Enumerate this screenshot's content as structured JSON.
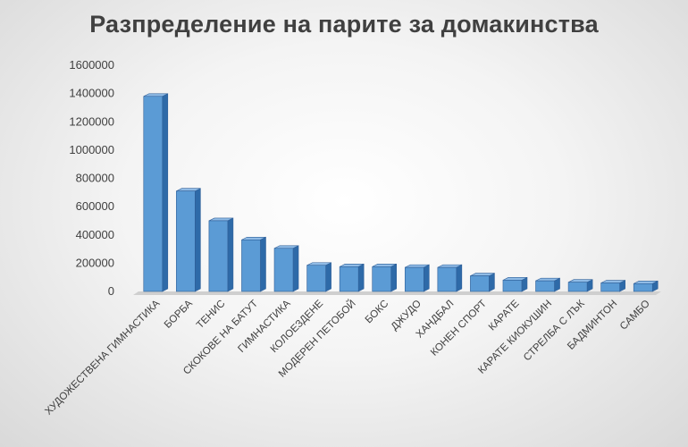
{
  "chart_data": {
    "type": "bar",
    "title": "Разпределение на парите за домакинства",
    "categories": [
      "ХУДОЖЕСТВЕНА ГИМНАСТИКА",
      "БОРБА",
      "ТЕНИС",
      "СКОКОВЕ НА БАТУТ",
      "ГИМНАСТИКА",
      "КОЛОЕЗДЕНЕ",
      "МОДЕРЕН ПЕТОБОЙ",
      "БОКС",
      "ДЖУДО",
      "ХАНДБАЛ",
      "КОНЕН СПОРТ",
      "КАРАТЕ",
      "КАРАТЕ КИОКУШИН",
      "СТРЕЛБА С ЛЪК",
      "БАДМИНТОН",
      "САМБО"
    ],
    "values": [
      1380000,
      710000,
      500000,
      365000,
      305000,
      185000,
      175000,
      175000,
      170000,
      170000,
      110000,
      80000,
      75000,
      65000,
      60000,
      55000
    ],
    "ylim": [
      0,
      1600000
    ],
    "yticks": [
      "0",
      "200000",
      "400000",
      "600000",
      "800000",
      "1000000",
      "1200000",
      "1400000",
      "1600000"
    ],
    "grid": false,
    "legend": "none",
    "colors": {
      "bar_front": "#5b9bd5",
      "bar_side": "#2e6aa8",
      "bar_top": "#8fbbe6",
      "outline": "#2f5f98",
      "text": "#404040",
      "title": "#404040"
    }
  }
}
